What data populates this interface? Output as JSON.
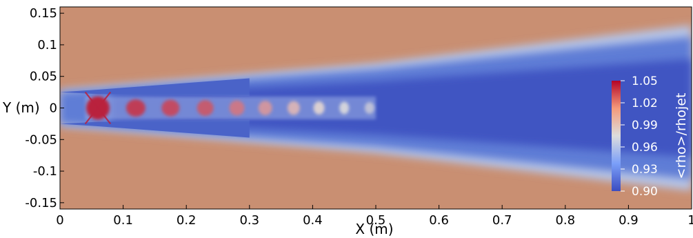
{
  "chart_data": {
    "type": "heatmap",
    "title": "",
    "xlabel": "X (m)",
    "ylabel": "Y (m)",
    "xlim": [
      0,
      1
    ],
    "ylim": [
      -0.16,
      0.16
    ],
    "x_ticks": [
      0,
      0.1,
      0.2,
      0.3,
      0.4,
      0.5,
      0.6,
      0.7,
      0.8,
      0.9,
      1
    ],
    "x_tick_labels": [
      "0",
      "0.1",
      "0.2",
      "0.3",
      "0.4",
      "0.5",
      "0.6",
      "0.7",
      "0.8",
      "0.9",
      "1"
    ],
    "y_ticks": [
      0.15,
      0.1,
      0.05,
      0,
      -0.05,
      -0.1,
      -0.15
    ],
    "y_tick_labels": [
      "0.15",
      "0.1",
      "0.05",
      "0",
      "-0.05",
      "-0.1",
      "-0.15"
    ],
    "colorbar": {
      "label": "<rho>/rhojet",
      "min": 0.9,
      "max": 1.05,
      "ticks": [
        1.05,
        1.02,
        0.99,
        0.96,
        0.93,
        0.9
      ],
      "tick_labels": [
        "1.05",
        "1.02",
        "0.99",
        "0.96",
        "0.93",
        "0.90"
      ]
    },
    "colormap": "cool-to-warm",
    "colors": {
      "low": "#3b4cc0",
      "mid": "#dddddd",
      "high": "#b40426",
      "ambient": "#c98f72"
    },
    "field": {
      "ambient_value": 1.005,
      "nozzle_half_width": 0.025,
      "potential_core_end": 0.5,
      "shock_cells": [
        {
          "x": 0.06,
          "value": 1.04
        },
        {
          "x": 0.12,
          "value": 1.03
        },
        {
          "x": 0.175,
          "value": 1.025
        },
        {
          "x": 0.23,
          "value": 1.02
        },
        {
          "x": 0.28,
          "value": 1.01
        },
        {
          "x": 0.325,
          "value": 1.0
        },
        {
          "x": 0.37,
          "value": 0.99
        },
        {
          "x": 0.41,
          "value": 0.98
        },
        {
          "x": 0.45,
          "value": 0.97
        },
        {
          "x": 0.49,
          "value": 0.96
        }
      ],
      "mixing_layer_outer_half_width": [
        {
          "x": 0.0,
          "y": 0.028
        },
        {
          "x": 0.5,
          "y": 0.068
        },
        {
          "x": 1.0,
          "y": 0.125
        }
      ]
    }
  }
}
